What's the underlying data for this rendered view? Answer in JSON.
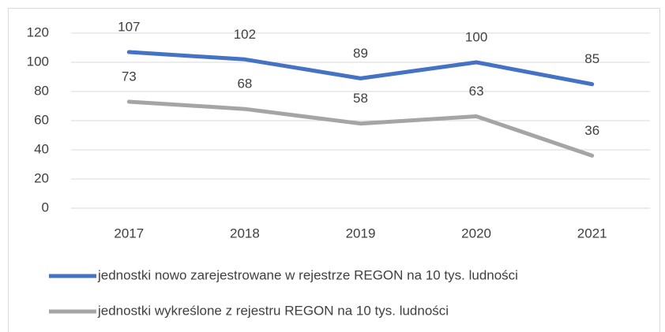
{
  "chart_data": {
    "type": "line",
    "categories": [
      "2017",
      "2018",
      "2019",
      "2020",
      "2021"
    ],
    "series": [
      {
        "name": "jednostki nowo zarejestrowane w rejestrze REGON na 10 tys. ludności",
        "color": "#4472c4",
        "values": [
          107,
          102,
          89,
          100,
          85
        ]
      },
      {
        "name": "jednostki wykreślone z rejestru REGON na 10 tys. ludności",
        "color": "#a5a5a5",
        "values": [
          73,
          68,
          58,
          63,
          36
        ]
      }
    ],
    "ylim": [
      0,
      120
    ],
    "yticks": [
      0,
      20,
      40,
      60,
      80,
      100,
      120
    ],
    "grid": true,
    "legend": "bottom"
  }
}
